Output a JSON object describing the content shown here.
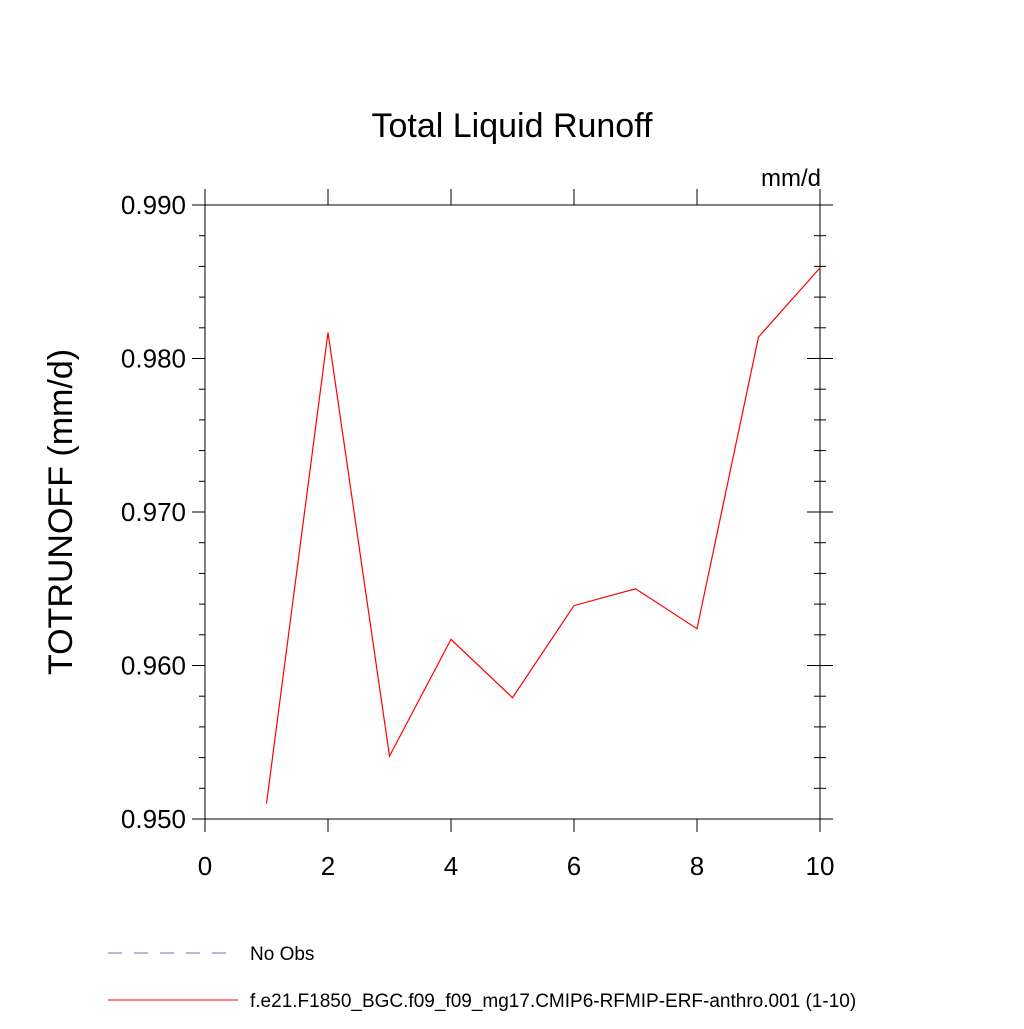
{
  "chart_data": {
    "type": "line",
    "title": "Total Liquid Runoff",
    "units": "mm/d",
    "xlabel": "",
    "ylabel": "TOTRUNOFF  (mm/d)",
    "xlim": [
      0,
      10
    ],
    "ylim": [
      0.95,
      0.99
    ],
    "x_ticks": [
      0,
      2,
      4,
      6,
      8,
      10
    ],
    "x_tick_labels": [
      "0",
      "2",
      "4",
      "6",
      "8",
      "10"
    ],
    "y_ticks": [
      0.95,
      0.96,
      0.97,
      0.98,
      0.99
    ],
    "y_tick_labels": [
      "0.950",
      "0.960",
      "0.970",
      "0.980",
      "0.990"
    ],
    "grid": false,
    "legend_position": "bottom-left",
    "series": [
      {
        "name": "No Obs",
        "color": "#7a6fb0",
        "dash": "dashed",
        "x": [],
        "values": []
      },
      {
        "name": "f.e21.F1850_BGC.f09_f09_mg17.CMIP6-RFMIP-ERF-anthro.001 (1-10)",
        "color": "#ff0000",
        "dash": "solid",
        "x": [
          1,
          2,
          3,
          4,
          5,
          6,
          7,
          8,
          9,
          10
        ],
        "values": [
          0.951,
          0.9817,
          0.9541,
          0.9617,
          0.9579,
          0.9639,
          0.965,
          0.9624,
          0.9814,
          0.9859
        ]
      }
    ]
  }
}
